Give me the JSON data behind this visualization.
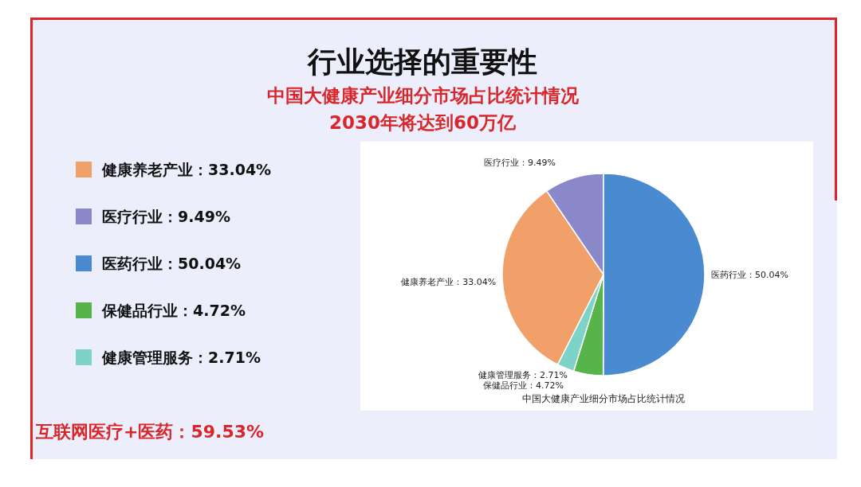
{
  "chart_data": {
    "type": "pie",
    "title": "行业选择的重要性",
    "subtitle": "中国大健康产业细分市场占比统计情况",
    "categories": [
      "健康养老产业",
      "医疗行业",
      "医药行业",
      "保健品行业",
      "健康管理服务"
    ],
    "values": [
      33.04,
      9.49,
      50.04,
      4.72,
      2.71
    ],
    "colors": [
      "#f0a068",
      "#8a88c8",
      "#4a8ad0",
      "#57b44a",
      "#7dd3c8"
    ],
    "value_labels": [
      "：33.04%",
      "：9.49%",
      "：50.04%",
      "：4.72%",
      "：2.71%"
    ],
    "legend": "left",
    "annotations": [
      "2030年将达到60万亿",
      "中国大健康产业细分市场占比统计情况",
      "互联网医疗+医药：59.53%"
    ]
  }
}
